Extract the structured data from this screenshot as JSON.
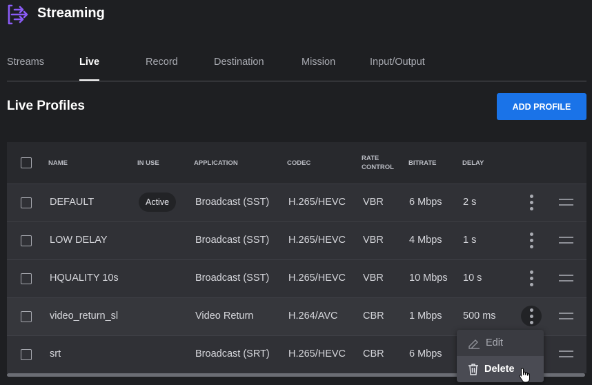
{
  "app": {
    "title": "Streaming",
    "accent": "#8b5cf6"
  },
  "tabs": [
    {
      "label": "Streams"
    },
    {
      "label": "Live",
      "active": true
    },
    {
      "label": "Record"
    },
    {
      "label": "Destination"
    },
    {
      "label": "Mission"
    },
    {
      "label": "Input/Output"
    }
  ],
  "page": {
    "title": "Live Profiles",
    "add_label": "ADD PROFILE"
  },
  "table": {
    "headers": {
      "name": "NAME",
      "in_use": "IN USE",
      "application": "APPLICATION",
      "codec": "CODEC",
      "rate_control": "RATE CONTROL",
      "bitrate": "BITRATE",
      "delay": "DELAY"
    },
    "rows": [
      {
        "name": "DEFAULT",
        "in_use": "Active",
        "application": "Broadcast (SST)",
        "codec": "H.265/HEVC",
        "rate_control": "VBR",
        "bitrate": "6 Mbps",
        "delay": "2 s"
      },
      {
        "name": "LOW DELAY",
        "in_use": "",
        "application": "Broadcast (SST)",
        "codec": "H.265/HEVC",
        "rate_control": "VBR",
        "bitrate": "4 Mbps",
        "delay": "1 s"
      },
      {
        "name": "HQUALITY 10s",
        "in_use": "",
        "application": "Broadcast (SST)",
        "codec": "H.265/HEVC",
        "rate_control": "VBR",
        "bitrate": "10 Mbps",
        "delay": "10 s"
      },
      {
        "name": "video_return_sl",
        "in_use": "",
        "application": "Video Return",
        "codec": "H.264/AVC",
        "rate_control": "CBR",
        "bitrate": "1 Mbps",
        "delay": "500 ms"
      },
      {
        "name": "srt",
        "in_use": "",
        "application": "Broadcast (SRT)",
        "codec": "H.265/HEVC",
        "rate_control": "CBR",
        "bitrate": "6 Mbps",
        "delay": ""
      }
    ]
  },
  "menu": {
    "edit": "Edit",
    "delete": "Delete"
  }
}
